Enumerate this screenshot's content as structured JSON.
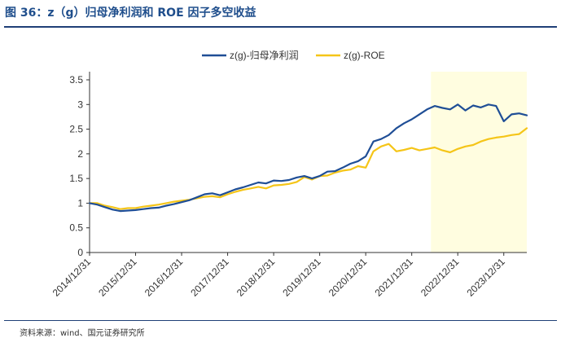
{
  "title": "图 36：z（g）归母净利润和 ROE 因子多空收益",
  "source": "资料来源：wind、国元证券研究所",
  "chart_data": {
    "type": "line",
    "title": "图 36：z（g）归母净利润和 ROE 因子多空收益",
    "xlabel": "",
    "ylabel": "",
    "ylim": [
      0,
      3.5
    ],
    "y_ticks": [
      "0",
      "0.5",
      "1",
      "1.5",
      "2",
      "2.5",
      "3",
      "3.5"
    ],
    "x_ticks": [
      "2014/12/31",
      "2015/12/31",
      "2016/12/31",
      "2017/12/31",
      "2018/12/31",
      "2019/12/31",
      "2020/12/31",
      "2021/12/31",
      "2022/12/31",
      "2023/12/31"
    ],
    "grid": false,
    "legend_position": "top",
    "highlight_region": {
      "start": "2022/05",
      "end": "2024/06",
      "color": "#fffde0"
    },
    "x": [
      "2014/12",
      "2015/02",
      "2015/04",
      "2015/06",
      "2015/08",
      "2015/10",
      "2015/12",
      "2016/02",
      "2016/04",
      "2016/06",
      "2016/08",
      "2016/10",
      "2016/12",
      "2017/02",
      "2017/04",
      "2017/06",
      "2017/08",
      "2017/10",
      "2017/12",
      "2018/02",
      "2018/04",
      "2018/06",
      "2018/08",
      "2018/10",
      "2018/12",
      "2019/02",
      "2019/04",
      "2019/06",
      "2019/08",
      "2019/10",
      "2019/12",
      "2020/02",
      "2020/04",
      "2020/06",
      "2020/08",
      "2020/10",
      "2020/12",
      "2021/02",
      "2021/04",
      "2021/06",
      "2021/08",
      "2021/10",
      "2021/12",
      "2022/02",
      "2022/04",
      "2022/06",
      "2022/08",
      "2022/10",
      "2022/12",
      "2023/02",
      "2023/04",
      "2023/06",
      "2023/08",
      "2023/10",
      "2023/12",
      "2024/02",
      "2024/04",
      "2024/06"
    ],
    "series": [
      {
        "name": "z(g)-归母净利润",
        "color": "#1f4e96",
        "values": [
          1.0,
          0.97,
          0.92,
          0.87,
          0.84,
          0.85,
          0.86,
          0.88,
          0.9,
          0.91,
          0.95,
          0.98,
          1.02,
          1.06,
          1.12,
          1.18,
          1.2,
          1.16,
          1.22,
          1.28,
          1.32,
          1.37,
          1.42,
          1.4,
          1.46,
          1.45,
          1.47,
          1.52,
          1.55,
          1.5,
          1.55,
          1.64,
          1.65,
          1.72,
          1.8,
          1.85,
          1.95,
          2.25,
          2.3,
          2.38,
          2.52,
          2.62,
          2.7,
          2.8,
          2.9,
          2.97,
          2.93,
          2.9,
          3.0,
          2.88,
          2.98,
          2.94,
          3.0,
          2.97,
          2.66,
          2.8,
          2.82,
          2.78
        ]
      },
      {
        "name": "z(g)-ROE",
        "color": "#f5c518",
        "values": [
          1.0,
          1.0,
          0.95,
          0.92,
          0.88,
          0.9,
          0.9,
          0.93,
          0.95,
          0.97,
          1.0,
          1.03,
          1.05,
          1.07,
          1.1,
          1.13,
          1.14,
          1.12,
          1.18,
          1.23,
          1.27,
          1.3,
          1.33,
          1.3,
          1.36,
          1.37,
          1.39,
          1.43,
          1.53,
          1.48,
          1.55,
          1.56,
          1.62,
          1.66,
          1.68,
          1.75,
          1.72,
          2.05,
          2.15,
          2.2,
          2.05,
          2.08,
          2.12,
          2.07,
          2.1,
          2.13,
          2.07,
          2.03,
          2.1,
          2.15,
          2.18,
          2.25,
          2.3,
          2.33,
          2.35,
          2.38,
          2.4,
          2.52
        ]
      }
    ]
  }
}
